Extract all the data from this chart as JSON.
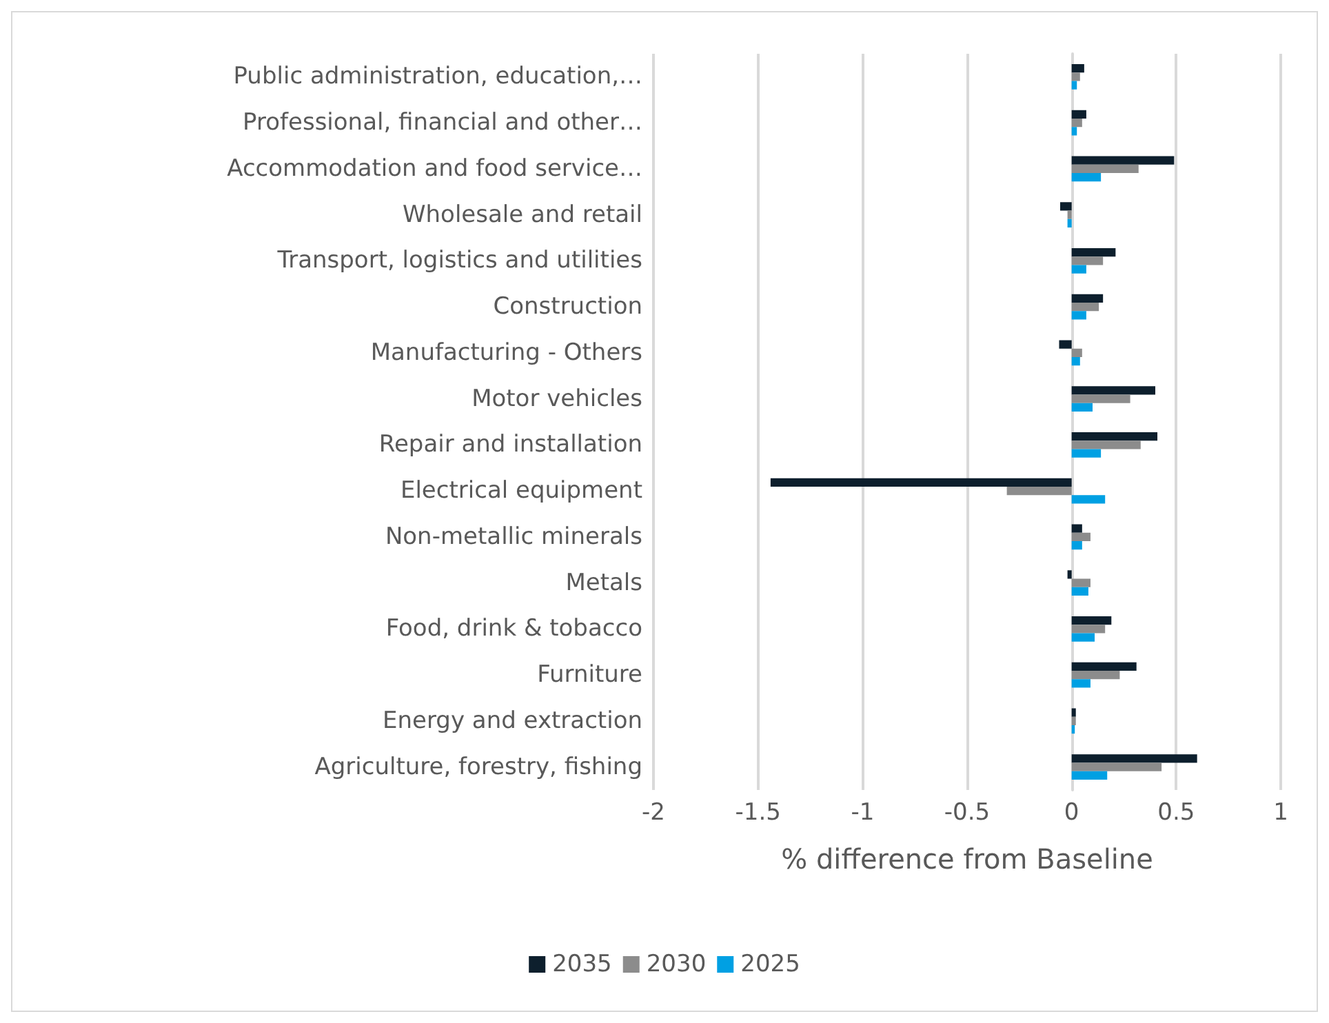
{
  "chart_data": {
    "type": "bar",
    "orientation": "horizontal",
    "xlabel": "% difference from Baseline",
    "categories": [
      "Public administration, education,…",
      "Professional, financial and other…",
      "Accommodation and food service…",
      "Wholesale and retail",
      "Transport, logistics and utilities",
      "Construction",
      "Manufacturing - Others",
      "Motor vehicles",
      "Repair and installation",
      "Electrical equipment",
      "Non-metallic minerals",
      "Metals",
      "Food, drink & tobacco",
      "Furniture",
      "Energy and extraction",
      "Agriculture, forestry, fishing"
    ],
    "series": [
      {
        "name": "2035",
        "color": "#0d1f2d",
        "values": [
          0.06,
          0.07,
          0.49,
          -0.055,
          0.21,
          0.15,
          -0.06,
          0.4,
          0.41,
          -1.44,
          0.05,
          -0.02,
          0.19,
          0.31,
          0.02,
          0.6
        ]
      },
      {
        "name": "2030",
        "color": "#8c8c8c",
        "values": [
          0.04,
          0.05,
          0.32,
          -0.02,
          0.15,
          0.13,
          0.05,
          0.28,
          0.33,
          -0.31,
          0.09,
          0.09,
          0.16,
          0.23,
          0.02,
          0.43
        ]
      },
      {
        "name": "2025",
        "color": "#00a0e3",
        "values": [
          0.025,
          0.025,
          0.14,
          -0.02,
          0.07,
          0.07,
          0.04,
          0.1,
          0.14,
          0.16,
          0.05,
          0.08,
          0.11,
          0.09,
          0.015,
          0.17
        ]
      }
    ],
    "xlim": [
      -2,
      1
    ],
    "xticks": [
      -2,
      -1.5,
      -1,
      -0.5,
      0,
      0.5,
      1
    ],
    "grid": "x",
    "legend": "bottom"
  }
}
